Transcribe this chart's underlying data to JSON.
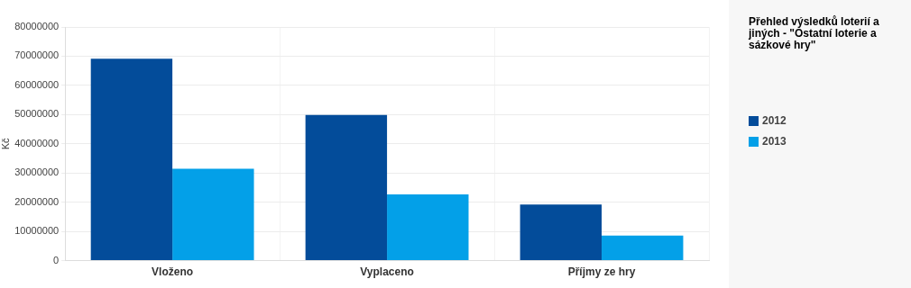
{
  "chart_data": {
    "type": "bar",
    "title": "Přehled výsledků loterií a jiných - \"Ostatní loterie a sázkové hry\"",
    "ylabel": "Kč",
    "categories": [
      "Vloženo",
      "Vyplaceno",
      "Příjmy ze hry"
    ],
    "series": [
      {
        "name": "2012",
        "color": "#034c9a",
        "values": [
          69100000,
          49900000,
          19200000
        ]
      },
      {
        "name": "2013",
        "color": "#03a0e8",
        "values": [
          31500000,
          22700000,
          8600000
        ]
      }
    ],
    "ylim": [
      0,
      80000000
    ],
    "yticks": [
      0,
      10000000,
      20000000,
      30000000,
      40000000,
      50000000,
      60000000,
      70000000,
      80000000
    ],
    "grid": true,
    "legend": "right"
  }
}
